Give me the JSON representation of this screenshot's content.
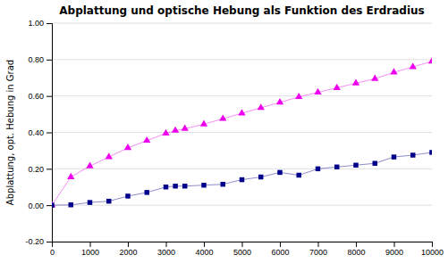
{
  "chart_data": {
    "type": "line",
    "title": "Abplattung und optische Hebung als Funktion des Erdradius",
    "ylabel": "Abplattung, opt. Hebung in Grad",
    "x": [
      0,
      500,
      1000,
      1500,
      2000,
      2500,
      3000,
      3250,
      3500,
      4000,
      4500,
      5000,
      5500,
      6000,
      6500,
      7000,
      7500,
      8000,
      8500,
      9000,
      9500,
      10000
    ],
    "series": [
      {
        "color": "#ee00ee",
        "marker": "triangle",
        "values": [
          0.0,
          0.155,
          0.215,
          0.265,
          0.315,
          0.355,
          0.395,
          0.41,
          0.42,
          0.445,
          0.475,
          0.505,
          0.535,
          0.565,
          0.595,
          0.62,
          0.645,
          0.67,
          0.695,
          0.73,
          0.76,
          0.79
        ]
      },
      {
        "color": "#00008b",
        "marker": "square",
        "values": [
          0.0,
          0.002,
          0.015,
          0.022,
          0.05,
          0.07,
          0.1,
          0.105,
          0.105,
          0.11,
          0.115,
          0.14,
          0.155,
          0.18,
          0.165,
          0.2,
          0.21,
          0.22,
          0.23,
          0.265,
          0.275,
          0.29
        ]
      }
    ],
    "xlim": [
      0,
      10000
    ],
    "ylim": [
      -0.2,
      1.0
    ],
    "xticks": [
      0,
      1000,
      2000,
      3000,
      4000,
      5000,
      6000,
      7000,
      8000,
      9000,
      10000
    ],
    "yticks": [
      {
        "value": -0.2,
        "label": "-0.20"
      },
      {
        "value": 0.0,
        "label": "0.00"
      },
      {
        "value": 0.2,
        "label": "0.20"
      },
      {
        "value": 0.4,
        "label": "0.40"
      },
      {
        "value": 0.6,
        "label": "0.60"
      },
      {
        "value": 0.8,
        "label": "0.80"
      },
      {
        "value": 1.0,
        "label": "1.00"
      }
    ],
    "grid": true
  }
}
